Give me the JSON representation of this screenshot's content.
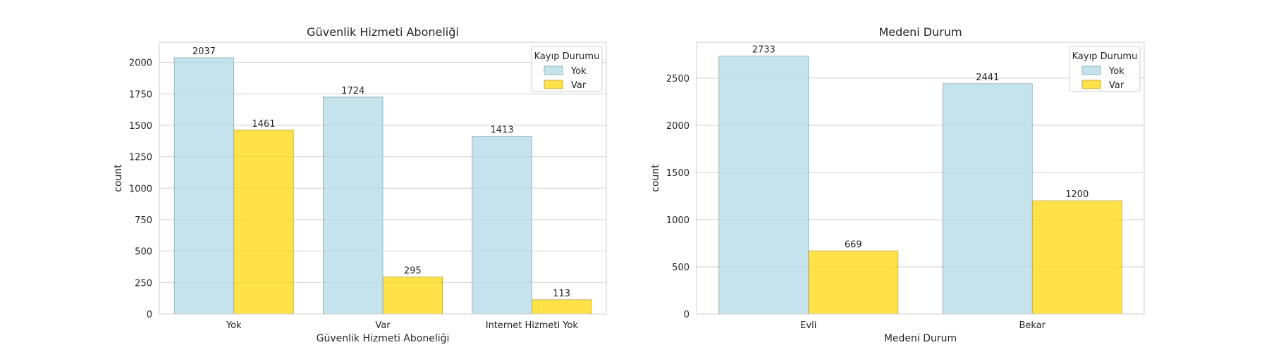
{
  "colors": {
    "yok": "#add8e6",
    "var": "#ffd700"
  },
  "chart_data": [
    {
      "type": "bar",
      "title": "Güvenlik Hizmeti Aboneliği",
      "xlabel": "Güvenlik Hizmeti Aboneliği",
      "ylabel": "count",
      "categories": [
        "Yok",
        "Var",
        "Internet Hizmeti Yok"
      ],
      "series": [
        {
          "name": "Yok",
          "values": [
            2037,
            1724,
            1413
          ]
        },
        {
          "name": "Var",
          "values": [
            1461,
            295,
            113
          ]
        }
      ],
      "ylim": [
        0,
        2160
      ],
      "yticks": [
        0,
        250,
        500,
        750,
        1000,
        1250,
        1500,
        1750,
        2000
      ],
      "legend": {
        "title": "Kayıp Durumu",
        "placement": "top-right"
      },
      "grid": true
    },
    {
      "type": "bar",
      "title": "Medeni Durum",
      "xlabel": "Medeni Durum",
      "ylabel": "count",
      "categories": [
        "Evli",
        "Bekar"
      ],
      "series": [
        {
          "name": "Yok",
          "values": [
            2733,
            2441
          ]
        },
        {
          "name": "Var",
          "values": [
            669,
            1200
          ]
        }
      ],
      "ylim": [
        0,
        2880
      ],
      "yticks": [
        0,
        500,
        1000,
        1500,
        2000,
        2500
      ],
      "legend": {
        "title": "Kayıp Durumu",
        "placement": "top-right"
      },
      "grid": true
    }
  ]
}
